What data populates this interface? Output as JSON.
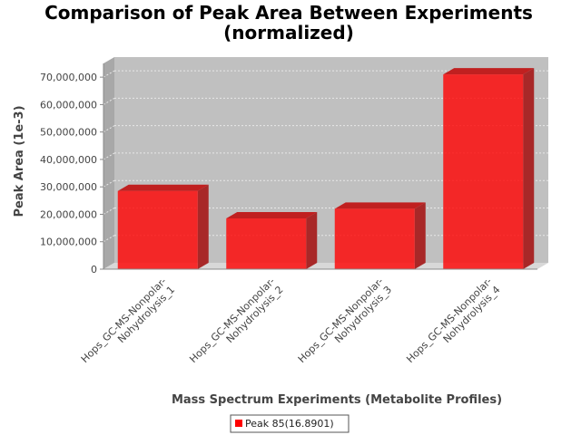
{
  "chart_data": {
    "type": "bar",
    "title_line1": "Comparison of Peak Area Between Experiments",
    "title_line2": "(normalized)",
    "xlabel": "Mass Spectrum Experiments (Metabolite Profiles)",
    "ylabel": "Peak Area (1e-3)",
    "ylim": [
      0,
      75000000
    ],
    "yticks": [
      0,
      10000000,
      20000000,
      30000000,
      40000000,
      50000000,
      60000000,
      70000000
    ],
    "ytick_labels": [
      "0",
      "10,000,000",
      "20,000,000",
      "30,000,000",
      "40,000,000",
      "50,000,000",
      "60,000,000",
      "70,000,000"
    ],
    "categories": [
      [
        "Hops_GC-MS-Nonpolar-",
        "Nohydrolysis_1"
      ],
      [
        "Hops_GC-MS-Nonpolar-",
        "Nohydrolysis_2"
      ],
      [
        "Hops_GC-MS-Nonpolar-",
        "Nohydrolysis_3"
      ],
      [
        "Hops_GC-MS-Nonpolar-",
        "Nohydrolysis_4"
      ]
    ],
    "series": [
      {
        "name": "Peak 85(16.8901)",
        "values": [
          28500000,
          18500000,
          22000000,
          71000000
        ]
      }
    ],
    "grid": true,
    "legend": "bottom-center",
    "colors": {
      "bar": "#ff0000",
      "plot_bg": "#c0c0c0",
      "grid": "#e8e8e8"
    }
  }
}
